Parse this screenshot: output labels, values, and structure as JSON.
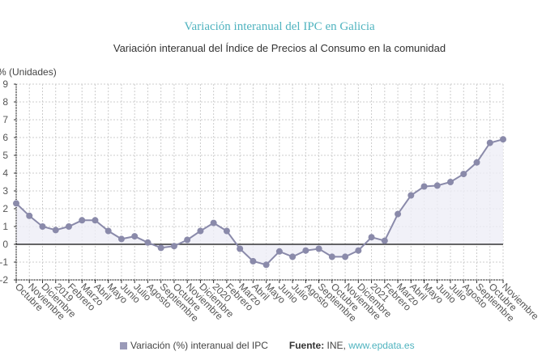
{
  "header": {
    "title": "Variación interanual del IPC en Galicia",
    "subtitle": "Variación interanual del Índice de Precios al Consumo en la comunidad"
  },
  "footer": {
    "legend_label": "Variación (%) interanual del IPC",
    "source_label": "Fuente:",
    "source_text": " INE, ",
    "source_link": "www.epdata.es"
  },
  "colors": {
    "title": "#4fb3bf",
    "line": "#8a8aaa",
    "fill": "#eeeef6",
    "zero_line": "#333333",
    "grid": "#cccccc"
  },
  "chart_data": {
    "type": "area",
    "title": "Variación interanual del IPC en Galicia",
    "subtitle": "Variación interanual del Índice de Precios al Consumo en la comunidad",
    "xlabel": "",
    "ylabel": "% (Unidades)",
    "ylim": [
      -2,
      9
    ],
    "yticks": [
      -2,
      -1,
      0,
      1,
      2,
      3,
      4,
      5,
      6,
      7,
      8,
      9
    ],
    "grid": true,
    "legend_position": "bottom",
    "categories": [
      "Octubre",
      "Noviembre",
      "Diciembre",
      "2019",
      "Febrero",
      "Marzo",
      "Abril",
      "Mayo",
      "Junio",
      "Julio",
      "Agosto",
      "Septiembre",
      "Octubre",
      "Noviembre",
      "Diciembre",
      "2020",
      "Febrero",
      "Marzo",
      "Abril",
      "Mayo",
      "Junio",
      "Julio",
      "Agosto",
      "Septiembre",
      "Octubre",
      "Noviembre",
      "Diciembre",
      "2021",
      "Febrero",
      "Marzo",
      "Abril",
      "Mayo",
      "Junio",
      "Julio",
      "Agosto",
      "Septiembre",
      "Octubre",
      "Noviembre"
    ],
    "series": [
      {
        "name": "Variación (%) interanual del IPC",
        "values": [
          2.3,
          1.6,
          1.0,
          0.8,
          1.0,
          1.35,
          1.35,
          0.75,
          0.3,
          0.45,
          0.1,
          -0.2,
          -0.1,
          0.25,
          0.75,
          1.2,
          0.75,
          -0.25,
          -0.95,
          -1.15,
          -0.4,
          -0.7,
          -0.35,
          -0.25,
          -0.7,
          -0.7,
          -0.35,
          0.4,
          0.2,
          1.7,
          2.75,
          3.25,
          3.3,
          3.5,
          3.95,
          4.6,
          5.7,
          5.9
        ]
      }
    ]
  }
}
